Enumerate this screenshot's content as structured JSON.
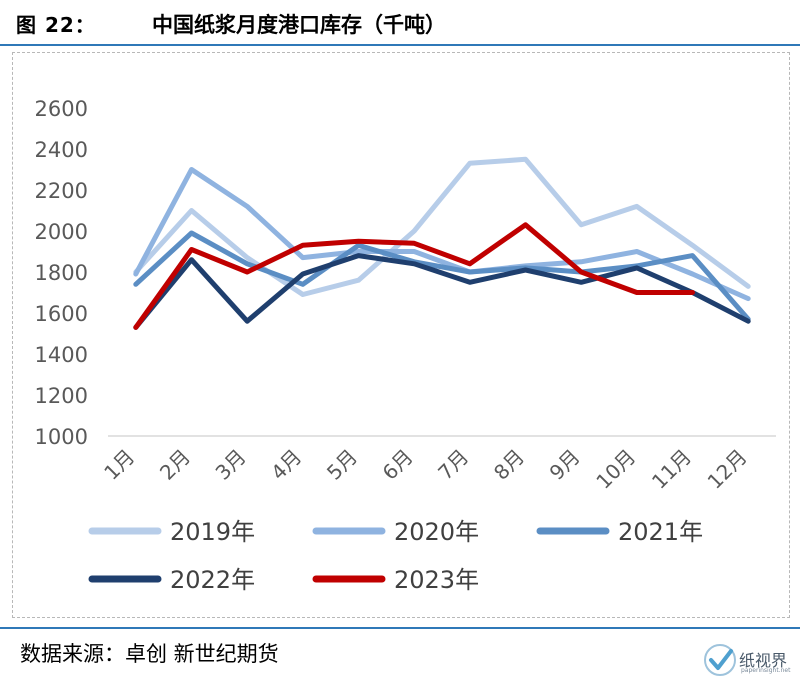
{
  "figure": {
    "label": "图  22：",
    "title": "中国纸浆月度港口库存（千吨）",
    "source": "数据来源：卓创  新世纪期货",
    "watermark_text": "纸视界",
    "watermark_url": "paperinsight.net"
  },
  "chart_data": {
    "type": "line",
    "title": "中国纸浆月度港口库存（千吨）",
    "xlabel": "",
    "ylabel": "",
    "categories": [
      "1月",
      "2月",
      "3月",
      "4月",
      "5月",
      "6月",
      "7月",
      "8月",
      "9月",
      "10月",
      "11月",
      "12月"
    ],
    "ylim": [
      1000,
      2600
    ],
    "yticks": [
      1000,
      1200,
      1400,
      1600,
      1800,
      2000,
      2200,
      2400,
      2600
    ],
    "grid": false,
    "legend_position": "bottom",
    "series": [
      {
        "name": "2019年",
        "color": "#b7cde9",
        "values": [
          1800,
          2100,
          1870,
          1690,
          1760,
          2000,
          2330,
          2350,
          2030,
          2120,
          1930,
          1730
        ]
      },
      {
        "name": "2020年",
        "color": "#8fb3e0",
        "values": [
          1790,
          2300,
          2120,
          1870,
          1900,
          1900,
          1800,
          1830,
          1850,
          1900,
          1790,
          1670
        ]
      },
      {
        "name": "2021年",
        "color": "#5b8ec4",
        "values": [
          1740,
          1990,
          1840,
          1740,
          1930,
          1850,
          1800,
          1820,
          1800,
          1830,
          1880,
          1570
        ]
      },
      {
        "name": "2022年",
        "color": "#1f3f6e",
        "values": [
          1530,
          1860,
          1560,
          1790,
          1880,
          1840,
          1750,
          1810,
          1750,
          1820,
          1700,
          1560
        ]
      },
      {
        "name": "2023年",
        "color": "#c00000",
        "values": [
          1530,
          1910,
          1800,
          1930,
          1950,
          1940,
          1840,
          2030,
          1800,
          1700,
          1700,
          null
        ]
      }
    ]
  }
}
